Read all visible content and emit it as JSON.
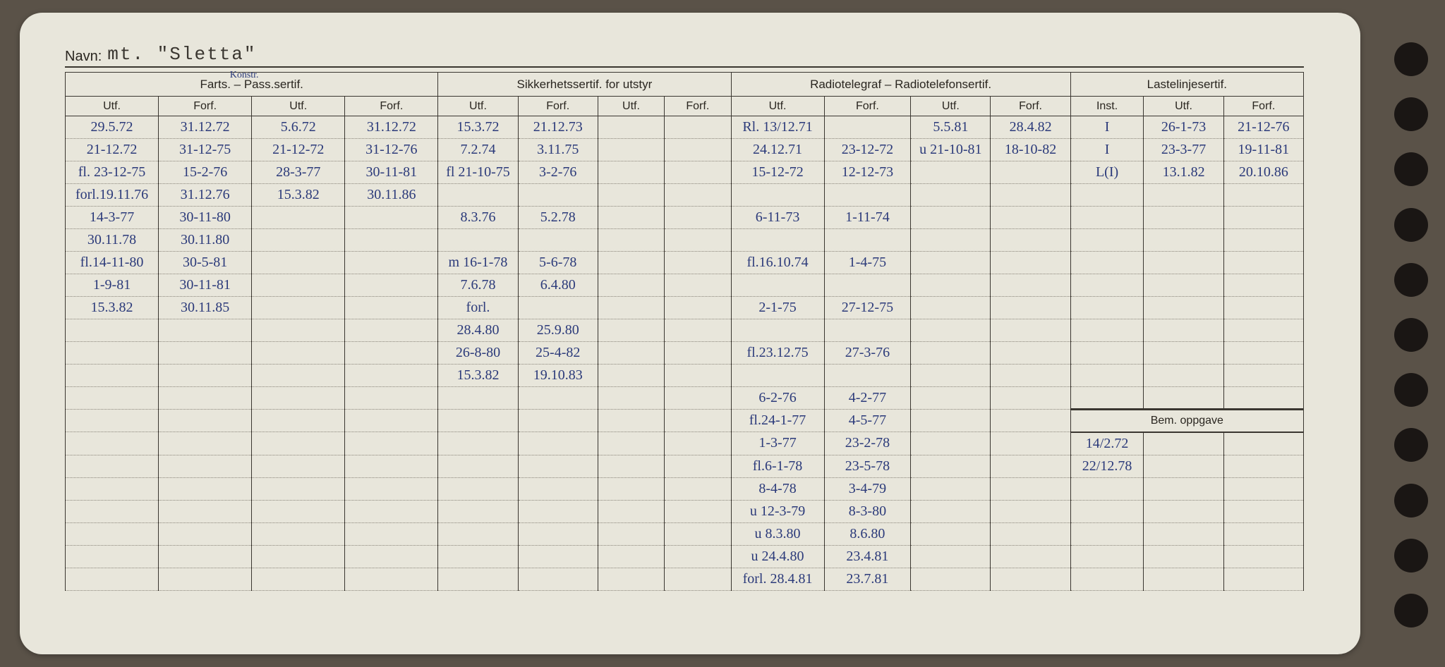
{
  "navn": {
    "label": "Navn:",
    "value": "mt. \"Sletta\""
  },
  "headers": {
    "group1": "Farts. – Pass.sertif.",
    "group1_annotation": "Konstr.",
    "group2": "Sikkerhetssertif. for utstyr",
    "group3": "Radiotelegraf – Radiotelefonsertif.",
    "group4": "Lastelinjesertif.",
    "bem": "Bem. oppgave",
    "utf": "Utf.",
    "forf": "Forf.",
    "inst": "Inst."
  },
  "colors": {
    "ink": "#2b3a7a",
    "paper": "#e8e6db",
    "rule": "#3a3630",
    "dotted": "#8a857a",
    "bg": "#5a5248"
  },
  "rows": [
    {
      "c": [
        "29.5.72",
        "31.12.72",
        "5.6.72",
        "31.12.72",
        "15.3.72",
        "21.12.73",
        "",
        "",
        "Rl. 13/12.71",
        "",
        "5.5.81",
        "28.4.82",
        "I",
        "26-1-73",
        "21-12-76"
      ]
    },
    {
      "c": [
        "21-12.72",
        "31-12-75",
        "21-12-72",
        "31-12-76",
        "7.2.74",
        "3.11.75",
        "",
        "",
        "24.12.71",
        "23-12-72",
        "u 21-10-81",
        "18-10-82",
        "I",
        "23-3-77",
        "19-11-81"
      ]
    },
    {
      "c": [
        "fl. 23-12-75",
        "15-2-76",
        "28-3-77",
        "30-11-81",
        "fl 21-10-75",
        "3-2-76",
        "",
        "",
        "15-12-72",
        "12-12-73",
        "",
        "",
        "L(I)",
        "13.1.82",
        "20.10.86"
      ]
    },
    {
      "c": [
        "forl.19.11.76",
        "31.12.76",
        "15.3.82",
        "30.11.86",
        "",
        "",
        "",
        "",
        "",
        "",
        "",
        "",
        "",
        "",
        ""
      ]
    },
    {
      "c": [
        "14-3-77",
        "30-11-80",
        "",
        "",
        "8.3.76",
        "5.2.78",
        "",
        "",
        "6-11-73",
        "1-11-74",
        "",
        "",
        "",
        "",
        ""
      ]
    },
    {
      "c": [
        "30.11.78",
        "30.11.80",
        "",
        "",
        "",
        "",
        "",
        "",
        "",
        "",
        "",
        "",
        "",
        "",
        ""
      ]
    },
    {
      "c": [
        "fl.14-11-80",
        "30-5-81",
        "",
        "",
        "m 16-1-78",
        "5-6-78",
        "",
        "",
        "fl.16.10.74",
        "1-4-75",
        "",
        "",
        "",
        "",
        ""
      ]
    },
    {
      "c": [
        "1-9-81",
        "30-11-81",
        "",
        "",
        "7.6.78",
        "6.4.80",
        "",
        "",
        "",
        "",
        "",
        "",
        "",
        "",
        ""
      ]
    },
    {
      "c": [
        "15.3.82",
        "30.11.85",
        "",
        "",
        "forl.",
        "",
        "",
        "",
        "2-1-75",
        "27-12-75",
        "",
        "",
        "",
        "",
        ""
      ]
    },
    {
      "c": [
        "",
        "",
        "",
        "",
        "28.4.80",
        "25.9.80",
        "",
        "",
        "",
        "",
        "",
        "",
        "",
        "",
        ""
      ]
    },
    {
      "c": [
        "",
        "",
        "",
        "",
        "26-8-80",
        "25-4-82",
        "",
        "",
        "fl.23.12.75",
        "27-3-76",
        "",
        "",
        "",
        "",
        ""
      ]
    },
    {
      "c": [
        "",
        "",
        "",
        "",
        "15.3.82",
        "19.10.83",
        "",
        "",
        "",
        "",
        "",
        "",
        "",
        "",
        ""
      ]
    },
    {
      "c": [
        "",
        "",
        "",
        "",
        "",
        "",
        "",
        "",
        "6-2-76",
        "4-2-77",
        "",
        "",
        "",
        "",
        ""
      ]
    },
    {
      "c": [
        "",
        "",
        "",
        "",
        "",
        "",
        "",
        "",
        "fl.24-1-77",
        "4-5-77",
        "",
        "",
        "",
        "",
        ""
      ]
    },
    {
      "c": [
        "",
        "",
        "",
        "",
        "",
        "",
        "",
        "",
        "1-3-77",
        "23-2-78",
        "",
        "",
        "14/2.72",
        "",
        ""
      ]
    },
    {
      "c": [
        "",
        "",
        "",
        "",
        "",
        "",
        "",
        "",
        "fl.6-1-78",
        "23-5-78",
        "",
        "",
        "22/12.78",
        "",
        ""
      ]
    },
    {
      "c": [
        "",
        "",
        "",
        "",
        "",
        "",
        "",
        "",
        "8-4-78",
        "3-4-79",
        "",
        "",
        "",
        "",
        ""
      ]
    },
    {
      "c": [
        "",
        "",
        "",
        "",
        "",
        "",
        "",
        "",
        "u 12-3-79",
        "8-3-80",
        "",
        "",
        "",
        "",
        ""
      ]
    },
    {
      "c": [
        "",
        "",
        "",
        "",
        "",
        "",
        "",
        "",
        "u 8.3.80",
        "8.6.80",
        "",
        "",
        "",
        "",
        ""
      ]
    },
    {
      "c": [
        "",
        "",
        "",
        "",
        "",
        "",
        "",
        "",
        "u 24.4.80",
        "23.4.81",
        "",
        "",
        "",
        "",
        ""
      ]
    },
    {
      "c": [
        "",
        "",
        "",
        "",
        "",
        "",
        "",
        "",
        "forl. 28.4.81",
        "23.7.81",
        "",
        "",
        "",
        "",
        ""
      ]
    }
  ],
  "bem_start_row": 13
}
